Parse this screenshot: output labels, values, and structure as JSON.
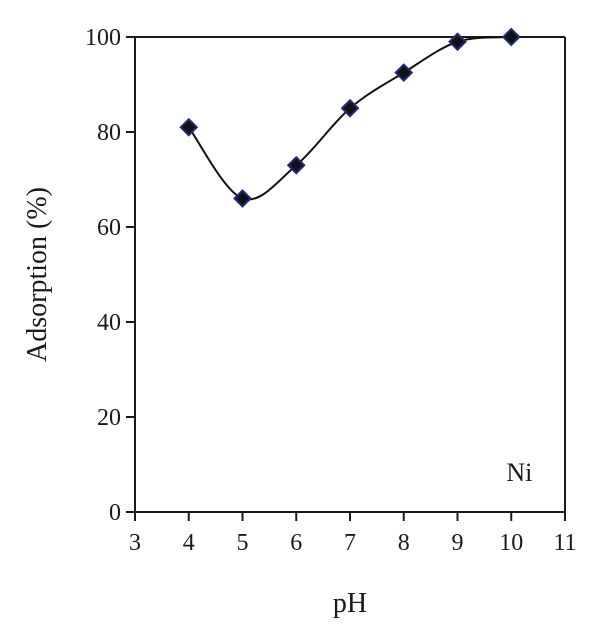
{
  "chart_data": {
    "type": "scatter",
    "title": "",
    "xlabel": "pH",
    "ylabel": "Adsorption (%)",
    "xlim": [
      3,
      11
    ],
    "ylim": [
      0,
      100
    ],
    "xticks": [
      3,
      4,
      5,
      6,
      7,
      8,
      9,
      10,
      11
    ],
    "yticks": [
      0,
      20,
      40,
      60,
      80,
      100
    ],
    "grid": false,
    "annotation": "Ni",
    "series": [
      {
        "x": [
          4,
          5,
          6,
          7,
          8,
          9,
          10
        ],
        "y": [
          81,
          66,
          73,
          85,
          92.5,
          99,
          100
        ],
        "marker": "diamond",
        "marker_fill": "#111111",
        "marker_edge": "#1f2a7a",
        "line": "smooth",
        "line_color": "#111111"
      }
    ]
  }
}
